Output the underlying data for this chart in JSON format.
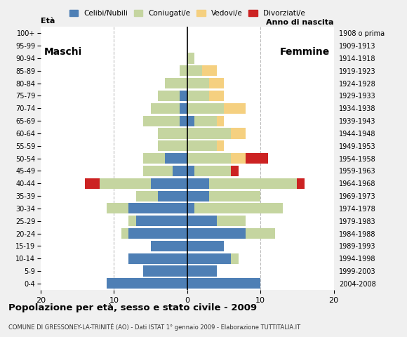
{
  "age_groups": [
    "0-4",
    "5-9",
    "10-14",
    "15-19",
    "20-24",
    "25-29",
    "30-34",
    "35-39",
    "40-44",
    "45-49",
    "50-54",
    "55-59",
    "60-64",
    "65-69",
    "70-74",
    "75-79",
    "80-84",
    "85-89",
    "90-94",
    "95-99",
    "100+"
  ],
  "birth_years": [
    "2004-2008",
    "1999-2003",
    "1994-1998",
    "1989-1993",
    "1984-1988",
    "1979-1983",
    "1974-1978",
    "1969-1973",
    "1964-1968",
    "1959-1963",
    "1954-1958",
    "1949-1953",
    "1944-1948",
    "1939-1943",
    "1934-1938",
    "1929-1933",
    "1924-1928",
    "1919-1923",
    "1914-1918",
    "1909-1913",
    "1908 o prima"
  ],
  "males": {
    "celibi": [
      11,
      6,
      8,
      5,
      8,
      7,
      8,
      4,
      5,
      2,
      3,
      0,
      0,
      1,
      1,
      1,
      0,
      0,
      0,
      0,
      0
    ],
    "coniugati": [
      0,
      0,
      0,
      0,
      1,
      1,
      3,
      3,
      7,
      4,
      3,
      4,
      4,
      5,
      4,
      3,
      3,
      1,
      0,
      0,
      0
    ],
    "vedovi": [
      0,
      0,
      0,
      0,
      0,
      0,
      0,
      0,
      0,
      0,
      0,
      0,
      0,
      0,
      0,
      0,
      0,
      0,
      0,
      0,
      0
    ],
    "divorziati": [
      0,
      0,
      0,
      0,
      0,
      0,
      0,
      0,
      2,
      0,
      0,
      0,
      0,
      0,
      0,
      0,
      0,
      0,
      0,
      0,
      0
    ]
  },
  "females": {
    "nubili": [
      10,
      4,
      6,
      5,
      8,
      4,
      1,
      3,
      3,
      1,
      0,
      0,
      0,
      1,
      0,
      0,
      0,
      0,
      0,
      0,
      0
    ],
    "coniugate": [
      0,
      0,
      1,
      0,
      4,
      4,
      12,
      7,
      12,
      5,
      6,
      4,
      6,
      3,
      5,
      3,
      3,
      2,
      1,
      0,
      0
    ],
    "vedove": [
      0,
      0,
      0,
      0,
      0,
      0,
      0,
      0,
      0,
      0,
      2,
      1,
      2,
      1,
      3,
      2,
      2,
      2,
      0,
      0,
      0
    ],
    "divorziate": [
      0,
      0,
      0,
      0,
      0,
      0,
      0,
      0,
      1,
      1,
      3,
      0,
      0,
      0,
      0,
      0,
      0,
      0,
      0,
      0,
      0
    ]
  },
  "colors": {
    "celibi_nubili": "#4e7fb5",
    "coniugati": "#c5d5a0",
    "vedovi": "#f5d080",
    "divorziati": "#cc2222"
  },
  "xlim": 20,
  "title": "Popolazione per età, sesso e stato civile - 2009",
  "subtitle": "COMUNE DI GRESSONEY-LA-TRINITÉ (AO) - Dati ISTAT 1° gennaio 2009 - Elaborazione TUTTITALIA.IT",
  "ylabel_left": "Età",
  "ylabel_right": "Anno di nascita",
  "label_maschi": "Maschi",
  "label_femmine": "Femmine",
  "legend_labels": [
    "Celibi/Nubili",
    "Coniugati/e",
    "Vedovi/e",
    "Divorziati/e"
  ],
  "background_color": "#f0f0f0",
  "plot_bg_color": "#ffffff"
}
